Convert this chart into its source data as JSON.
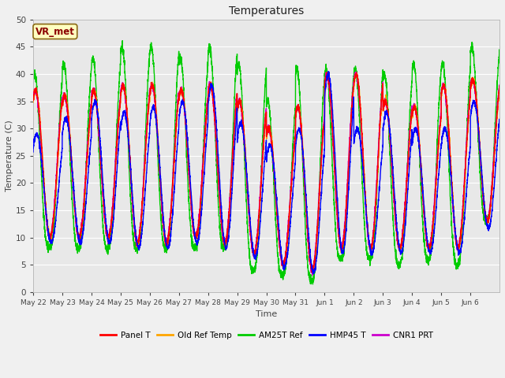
{
  "title": "Temperatures",
  "xlabel": "Time",
  "ylabel": "Temperature (C)",
  "ylim": [
    0,
    50
  ],
  "fig_bg_color": "#f0f0f0",
  "plot_bg_color": "#e8e8e8",
  "grid_color": "#ffffff",
  "annotation_text": "VR_met",
  "annotation_color": "#8B0000",
  "annotation_bg": "#FFFFC0",
  "annotation_border": "#8B6914",
  "series": [
    {
      "label": "Panel T",
      "color": "#ff0000"
    },
    {
      "label": "Old Ref Temp",
      "color": "#ffa500"
    },
    {
      "label": "AM25T Ref",
      "color": "#00cc00"
    },
    {
      "label": "HMP45 T",
      "color": "#0000ff"
    },
    {
      "label": "CNR1 PRT",
      "color": "#cc00cc"
    }
  ],
  "x_tick_labels": [
    "May 22",
    "May 23",
    "May 24",
    "May 25",
    "May 26",
    "May 27",
    "May 28",
    "May 29",
    "May 30",
    "May 31",
    "Jun 1",
    "Jun 2",
    "Jun 3",
    "Jun 4",
    "Jun 5",
    "Jun 6"
  ],
  "n_days": 16
}
